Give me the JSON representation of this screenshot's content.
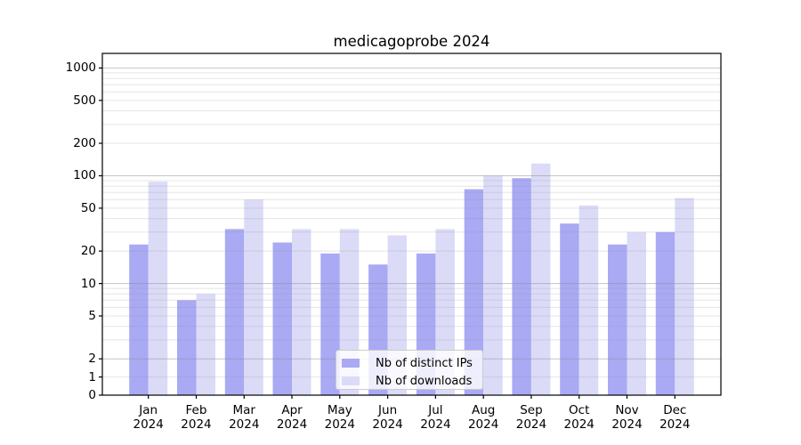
{
  "chart_data": {
    "type": "bar",
    "title": "medicagoprobe 2024",
    "categories": [
      "Jan",
      "Feb",
      "Mar",
      "Apr",
      "May",
      "Jun",
      "Jul",
      "Aug",
      "Sep",
      "Oct",
      "Nov",
      "Dec"
    ],
    "x_year": "2024",
    "series": [
      {
        "name": "Nb of distinct IPs",
        "color": "#a9a9f4",
        "values": [
          23,
          7,
          32,
          24,
          19,
          15,
          19,
          75,
          95,
          36,
          23,
          30
        ]
      },
      {
        "name": "Nb of downloads",
        "color": "#dbdbf8",
        "values": [
          88,
          8,
          60,
          32,
          32,
          28,
          32,
          100,
          130,
          53,
          30,
          62
        ]
      }
    ],
    "yscale": "symlog (linear 0-2, logarithmic above 2)",
    "yticks": [
      0,
      1,
      2,
      5,
      10,
      20,
      50,
      100,
      200,
      500,
      1000
    ],
    "ylim": [
      0,
      1365
    ],
    "grid_major": [
      2,
      10,
      100,
      1000
    ],
    "grid_minor": [
      1,
      3,
      4,
      5,
      6,
      7,
      8,
      9,
      20,
      30,
      40,
      50,
      60,
      70,
      80,
      90,
      200,
      300,
      400,
      500,
      600,
      700,
      800,
      900
    ],
    "grid_on": true,
    "legend_position": "lower center inside plot",
    "axis_color": "#000000",
    "background_color": "#ffffff"
  }
}
